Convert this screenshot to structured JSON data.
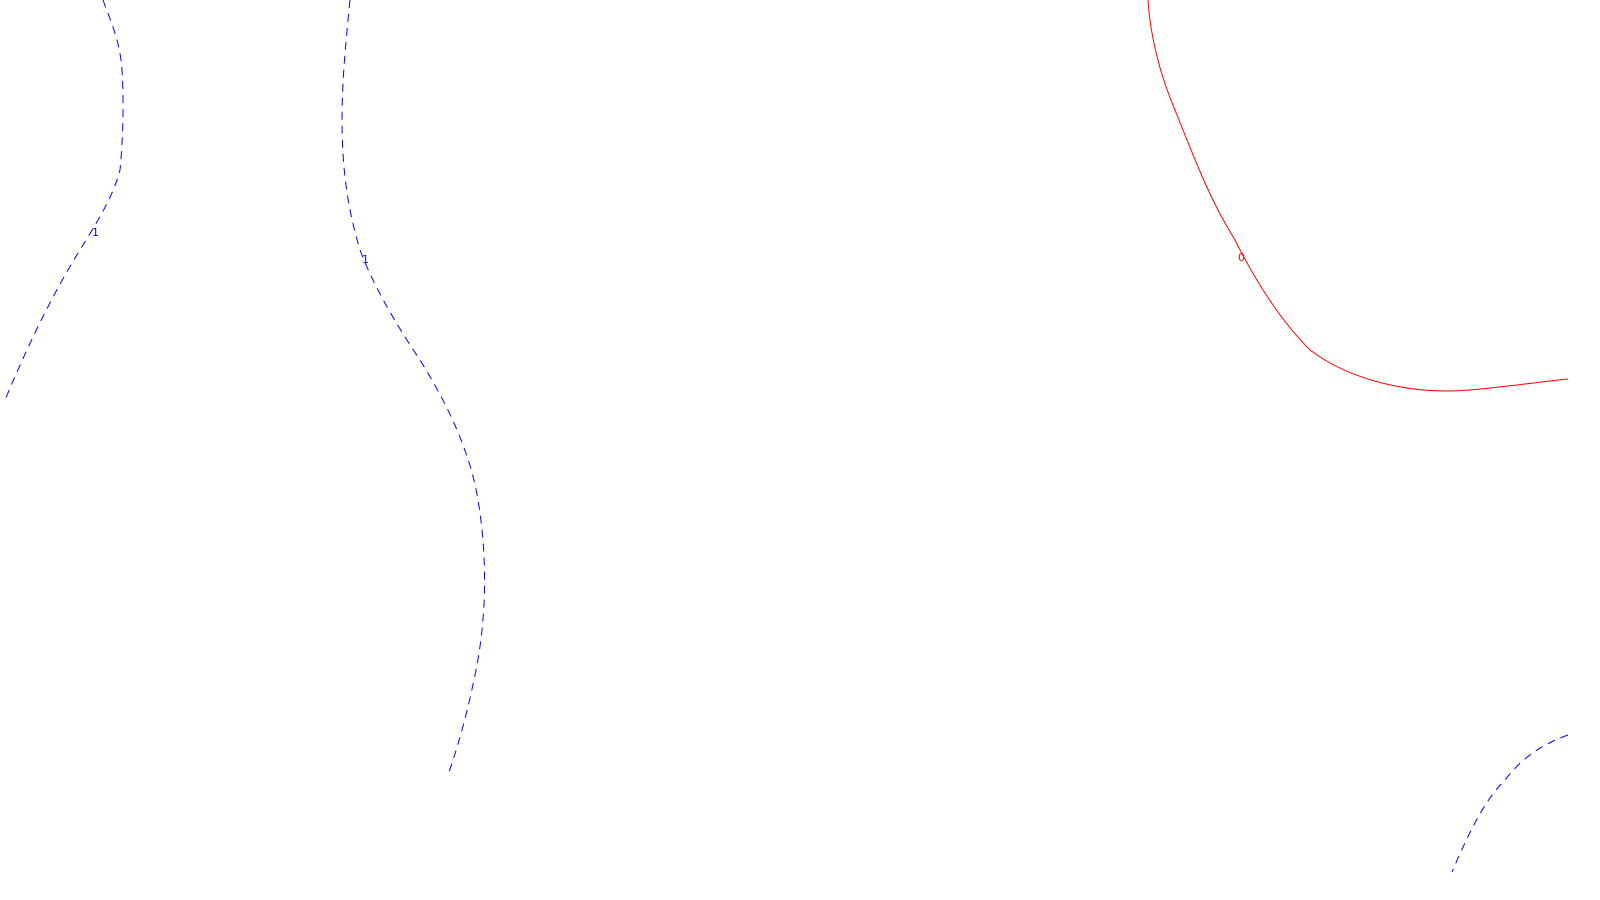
{
  "contours": [
    {
      "id": "contour-1-left",
      "level_label": "1",
      "style": "dashed",
      "color": "#0000ff"
    },
    {
      "id": "contour-1-middle",
      "level_label": "1",
      "style": "dashed",
      "color": "#0000ff"
    },
    {
      "id": "contour-0-right",
      "level_label": "0",
      "style": "solid",
      "color": "#ff0000"
    },
    {
      "id": "contour-bottom-right",
      "level_label": "",
      "style": "dashed",
      "color": "#0000ff"
    }
  ]
}
